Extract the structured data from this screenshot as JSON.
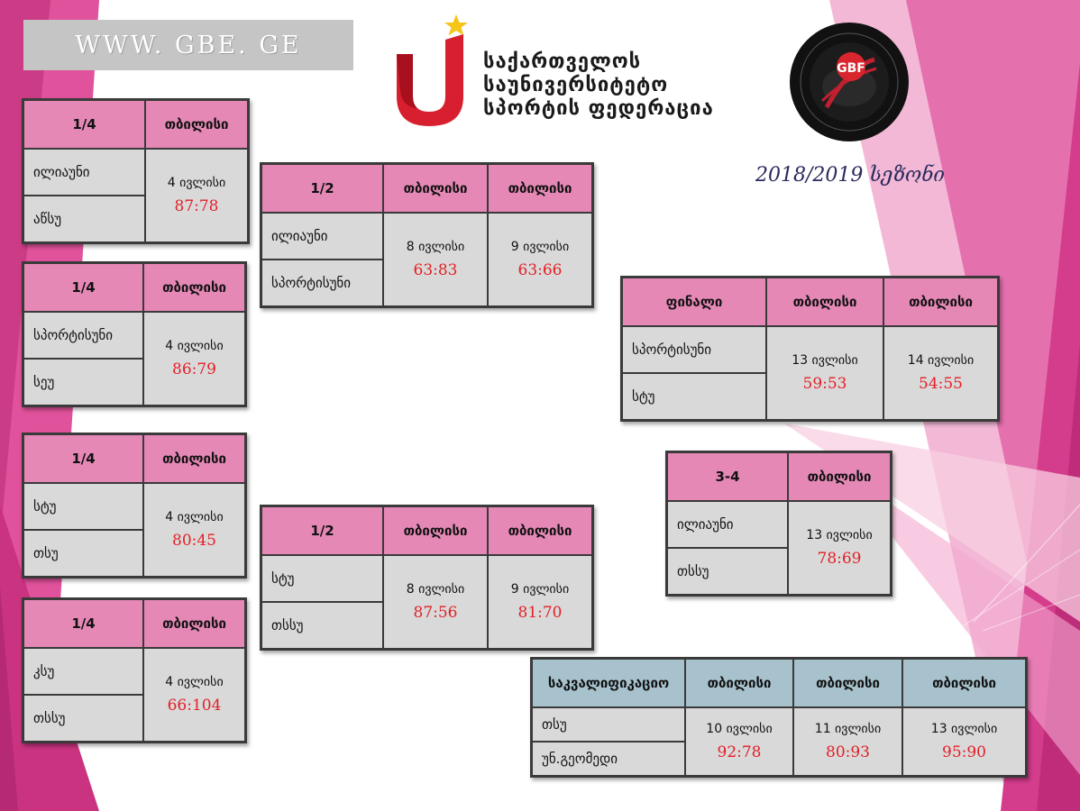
{
  "site": {
    "url": "WWW. GBE. GE"
  },
  "federation": {
    "name_lines": [
      "საქართველოს",
      "საუნივერსიტეტო",
      "სპორტის ფედერაცია"
    ],
    "logo": "gbf-badge-logo",
    "badge_text": "GBF"
  },
  "season": "2018/2019 სეზონი",
  "colors": {
    "header_pink": "#e588b6",
    "header_blue": "#a7c2cd",
    "score_red": "#e41f26",
    "cell_gray": "#d9d9d9"
  },
  "brackets": [
    {
      "stage": "1/4",
      "cities": [
        "თბილისი"
      ],
      "teams": [
        "ილიაუნი",
        "აწსუ"
      ],
      "games": [
        {
          "date": "4 ივლისი",
          "score": "87:78"
        }
      ]
    },
    {
      "stage": "1/4",
      "cities": [
        "თბილისი"
      ],
      "teams": [
        "სპორტისუნი",
        "სეუ"
      ],
      "games": [
        {
          "date": "4 ივლისი",
          "score": "86:79"
        }
      ]
    },
    {
      "stage": "1/4",
      "cities": [
        "თბილისი"
      ],
      "teams": [
        "სტუ",
        "თსუ"
      ],
      "games": [
        {
          "date": "4 ივლისი",
          "score": "80:45"
        }
      ]
    },
    {
      "stage": "1/4",
      "cities": [
        "თბილისი"
      ],
      "teams": [
        "კსუ",
        "თსსუ"
      ],
      "games": [
        {
          "date": "4 ივლისი",
          "score": "66:104"
        }
      ]
    },
    {
      "stage": "1/2",
      "cities": [
        "თბილისი",
        "თბილისი"
      ],
      "teams": [
        "ილიაუნი",
        "სპორტისუნი"
      ],
      "games": [
        {
          "date": "8 ივლისი",
          "score": "63:83"
        },
        {
          "date": "9 ივლისი",
          "score": "63:66"
        }
      ]
    },
    {
      "stage": "1/2",
      "cities": [
        "თბილისი",
        "თბილისი"
      ],
      "teams": [
        "სტუ",
        "თსსუ"
      ],
      "games": [
        {
          "date": "8 ივლისი",
          "score": "87:56"
        },
        {
          "date": "9 ივლისი",
          "score": "81:70"
        }
      ]
    },
    {
      "stage": "ფინალი",
      "cities": [
        "თბილისი",
        "თბილისი"
      ],
      "teams": [
        "სპორტისუნი",
        "სტუ"
      ],
      "games": [
        {
          "date": "13 ივლისი",
          "score": "59:53"
        },
        {
          "date": "14 ივლისი",
          "score": "54:55"
        }
      ]
    },
    {
      "stage": "3-4",
      "cities": [
        "თბილისი"
      ],
      "teams": [
        "ილიაუნი",
        "თსსუ"
      ],
      "games": [
        {
          "date": "13 ივლისი",
          "score": "78:69"
        }
      ]
    },
    {
      "stage": "საკვალიფიკაციო",
      "cities": [
        "თბილისი",
        "თბილისი",
        "თბილისი"
      ],
      "teams": [
        "თსუ",
        "უნ.გეომედი"
      ],
      "games": [
        {
          "date": "10 ივლისი",
          "score": "92:78"
        },
        {
          "date": "11 ივლისი",
          "score": "80:93"
        },
        {
          "date": "13 ივლისი",
          "score": "95:90"
        }
      ]
    }
  ]
}
